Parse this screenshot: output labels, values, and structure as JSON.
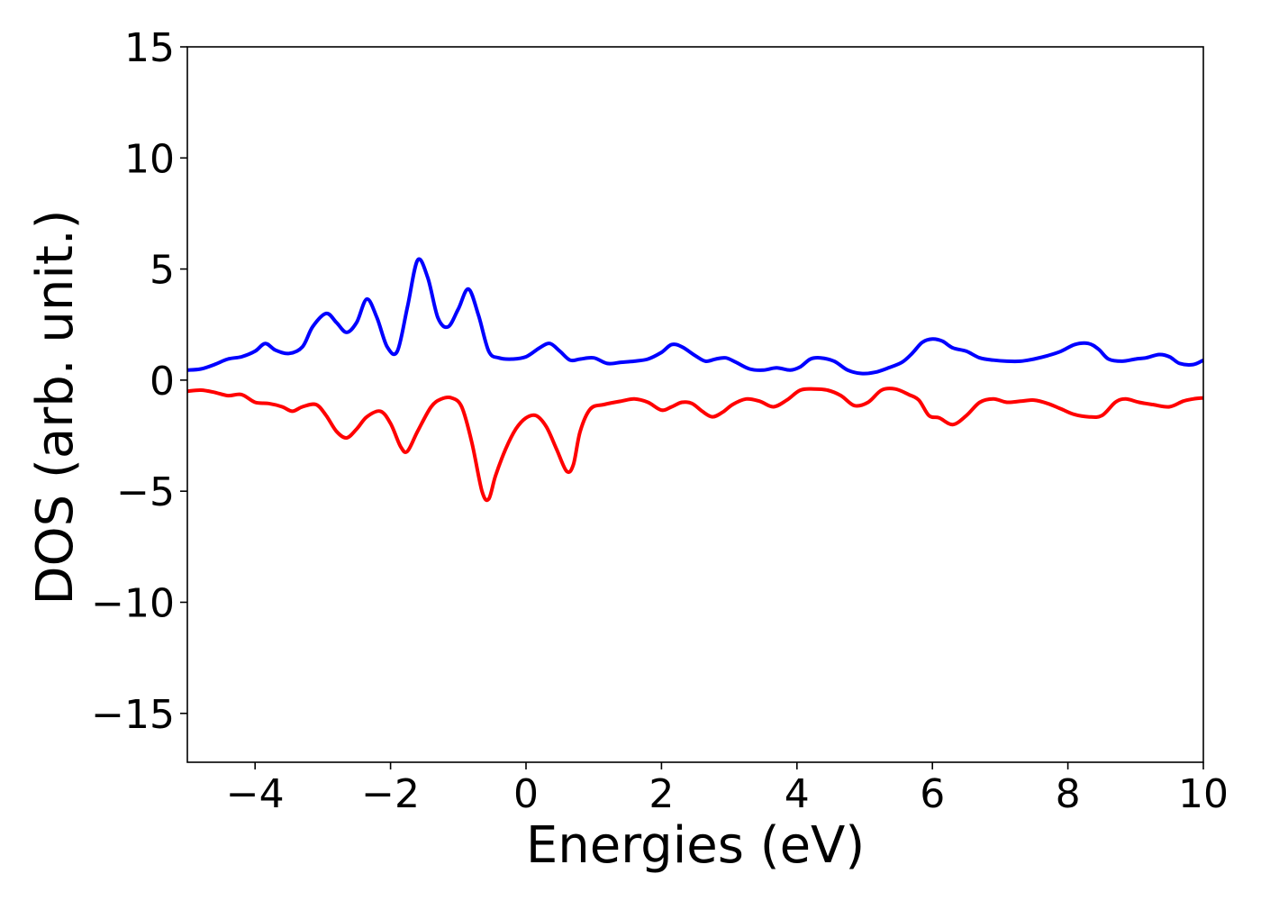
{
  "chart_data": {
    "type": "line",
    "title": "",
    "xlabel": "Energies (eV)",
    "ylabel": "DOS (arb. unit.)",
    "xlim": [
      -5,
      10
    ],
    "ylim": [
      -17.2,
      15
    ],
    "x_ticks": [
      -4,
      -2,
      0,
      2,
      4,
      6,
      8,
      10
    ],
    "x_tick_labels": [
      "−4",
      "−2",
      "0",
      "2",
      "4",
      "6",
      "8",
      "10"
    ],
    "y_ticks": [
      -15,
      -10,
      -5,
      0,
      5,
      10,
      15
    ],
    "y_tick_labels": [
      "−15",
      "−10",
      "−5",
      "0",
      "5",
      "10",
      "15"
    ],
    "grid": false,
    "legend": "none",
    "series": [
      {
        "color": "#0000ff",
        "x": [
          -5.0,
          -4.8,
          -4.6,
          -4.4,
          -4.2,
          -4.0,
          -3.85,
          -3.7,
          -3.5,
          -3.3,
          -3.15,
          -2.95,
          -2.8,
          -2.65,
          -2.5,
          -2.35,
          -2.2,
          -2.05,
          -1.9,
          -1.75,
          -1.6,
          -1.45,
          -1.3,
          -1.15,
          -1.0,
          -0.85,
          -0.7,
          -0.55,
          -0.4,
          -0.2,
          0.0,
          0.2,
          0.35,
          0.5,
          0.65,
          0.8,
          1.0,
          1.2,
          1.4,
          1.6,
          1.8,
          2.0,
          2.15,
          2.3,
          2.5,
          2.65,
          2.8,
          2.95,
          3.1,
          3.3,
          3.5,
          3.7,
          3.9,
          4.05,
          4.2,
          4.35,
          4.55,
          4.75,
          4.95,
          5.15,
          5.35,
          5.55,
          5.7,
          5.85,
          6.0,
          6.15,
          6.3,
          6.5,
          6.7,
          6.9,
          7.1,
          7.3,
          7.5,
          7.7,
          7.9,
          8.1,
          8.3,
          8.45,
          8.6,
          8.8,
          9.0,
          9.15,
          9.35,
          9.5,
          9.65,
          9.85,
          10.0
        ],
        "y": [
          0.45,
          0.5,
          0.7,
          0.95,
          1.05,
          1.3,
          1.65,
          1.35,
          1.2,
          1.5,
          2.4,
          3.0,
          2.6,
          2.15,
          2.6,
          3.65,
          2.8,
          1.5,
          1.3,
          3.3,
          5.4,
          4.6,
          2.8,
          2.4,
          3.2,
          4.1,
          2.9,
          1.3,
          1.0,
          0.95,
          1.05,
          1.45,
          1.65,
          1.3,
          0.9,
          0.95,
          1.0,
          0.75,
          0.8,
          0.85,
          0.95,
          1.25,
          1.6,
          1.5,
          1.1,
          0.85,
          0.95,
          1.0,
          0.8,
          0.5,
          0.45,
          0.55,
          0.45,
          0.6,
          0.95,
          1.0,
          0.85,
          0.45,
          0.3,
          0.35,
          0.55,
          0.8,
          1.2,
          1.7,
          1.85,
          1.75,
          1.45,
          1.3,
          1.0,
          0.9,
          0.85,
          0.85,
          0.95,
          1.1,
          1.3,
          1.6,
          1.65,
          1.4,
          0.95,
          0.85,
          0.95,
          1.0,
          1.15,
          1.05,
          0.75,
          0.7,
          0.9
        ]
      },
      {
        "color": "#ff0000",
        "x": [
          -5.0,
          -4.8,
          -4.6,
          -4.4,
          -4.2,
          -4.0,
          -3.8,
          -3.6,
          -3.45,
          -3.3,
          -3.1,
          -2.95,
          -2.8,
          -2.65,
          -2.5,
          -2.35,
          -2.15,
          -2.0,
          -1.85,
          -1.75,
          -1.6,
          -1.4,
          -1.25,
          -1.1,
          -0.95,
          -0.8,
          -0.65,
          -0.55,
          -0.45,
          -0.3,
          -0.15,
          0.0,
          0.15,
          0.3,
          0.45,
          0.6,
          0.7,
          0.8,
          0.95,
          1.15,
          1.4,
          1.6,
          1.8,
          2.0,
          2.15,
          2.3,
          2.45,
          2.6,
          2.75,
          2.9,
          3.05,
          3.25,
          3.45,
          3.65,
          3.85,
          4.05,
          4.25,
          4.45,
          4.65,
          4.85,
          5.05,
          5.25,
          5.45,
          5.65,
          5.8,
          5.95,
          6.1,
          6.3,
          6.5,
          6.7,
          6.9,
          7.1,
          7.3,
          7.5,
          7.7,
          7.9,
          8.1,
          8.3,
          8.5,
          8.7,
          8.85,
          9.05,
          9.25,
          9.5,
          9.7,
          9.85,
          10.0
        ],
        "y": [
          -0.5,
          -0.45,
          -0.55,
          -0.7,
          -0.65,
          -1.0,
          -1.05,
          -1.2,
          -1.4,
          -1.2,
          -1.1,
          -1.6,
          -2.3,
          -2.6,
          -2.2,
          -1.65,
          -1.4,
          -1.95,
          -3.0,
          -3.2,
          -2.3,
          -1.2,
          -0.85,
          -0.8,
          -1.2,
          -2.8,
          -5.0,
          -5.35,
          -4.3,
          -3.1,
          -2.2,
          -1.7,
          -1.6,
          -2.1,
          -3.1,
          -4.1,
          -3.8,
          -2.3,
          -1.3,
          -1.1,
          -0.95,
          -0.85,
          -1.0,
          -1.35,
          -1.2,
          -1.0,
          -1.05,
          -1.4,
          -1.65,
          -1.45,
          -1.1,
          -0.85,
          -0.95,
          -1.2,
          -0.9,
          -0.45,
          -0.4,
          -0.45,
          -0.7,
          -1.15,
          -1.0,
          -0.45,
          -0.4,
          -0.65,
          -0.9,
          -1.6,
          -1.7,
          -2.0,
          -1.6,
          -1.0,
          -0.85,
          -1.0,
          -0.95,
          -0.9,
          -1.05,
          -1.3,
          -1.55,
          -1.65,
          -1.6,
          -1.0,
          -0.85,
          -1.0,
          -1.1,
          -1.2,
          -0.95,
          -0.85,
          -0.8
        ]
      }
    ]
  }
}
